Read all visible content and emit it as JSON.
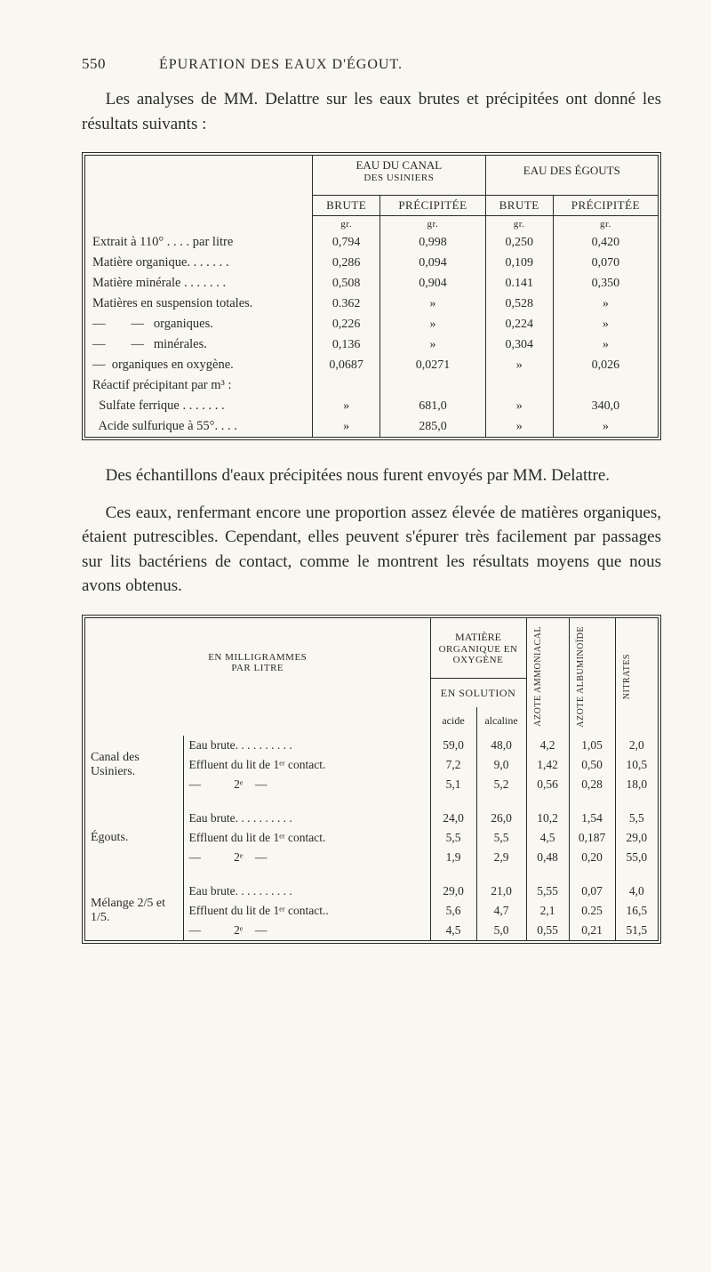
{
  "page": {
    "number": "550",
    "running_title": "ÉPURATION DES EAUX D'ÉGOUT."
  },
  "para1": "Les analyses de MM. Delattre sur les eaux brutes et précipitées ont donné les résultats suivants :",
  "para2": "Des échantillons d'eaux précipitées nous furent envoyés par MM. Delattre.",
  "para3": "Ces eaux, renfermant encore une proportion assez élevée de matières organiques, étaient putrescibles. Cependant, elles peuvent s'épurer très facilement par passages sur lits bactériens de contact, comme le montrent les résultats moyens que nous avons obtenus.",
  "table1": {
    "head": {
      "group1": "EAU DU CANAL",
      "group1_sub": "DES USINIERS",
      "group2": "EAU DES ÉGOUTS",
      "brute": "BRUTE",
      "precipitee": "PRÉCIPITÉE"
    },
    "unit_row": {
      "u": "gr."
    },
    "rows": [
      {
        "label": "Extrait à 110° . . . . par litre",
        "a": "0,794",
        "b": "0,998",
        "c": "0,250",
        "d": "0,420"
      },
      {
        "label": "Matière organique. . . . . . .",
        "a": "0,286",
        "b": "0,094",
        "c": "0,109",
        "d": "0,070"
      },
      {
        "label": "Matière minérale . . . . . . .",
        "a": "0,508",
        "b": "0,904",
        "c": "0.141",
        "d": "0,350"
      },
      {
        "label": "Matières en suspension totales.",
        "a": "0.362",
        "b": "»",
        "c": "0,528",
        "d": "»"
      },
      {
        "label": "—        —   organiques.",
        "a": "0,226",
        "b": "»",
        "c": "0,224",
        "d": "»"
      },
      {
        "label": "—        —   minérales.",
        "a": "0,136",
        "b": "»",
        "c": "0,304",
        "d": "»"
      },
      {
        "label": "—  organiques en oxygène.",
        "a": "0,0687",
        "b": "0,0271",
        "c": "»",
        "d": "0,026"
      },
      {
        "label": "Réactif précipitant par m³ :",
        "a": "",
        "b": "",
        "c": "",
        "d": ""
      },
      {
        "label": "  Sulfate ferrique . . . . . . .",
        "a": "»",
        "b": "681,0",
        "c": "»",
        "d": "340,0"
      },
      {
        "label": "  Acide sulfurique à 55°. . . .",
        "a": "»",
        "b": "285,0",
        "c": "»",
        "d": "»"
      }
    ]
  },
  "table2": {
    "head": {
      "label_title": "EN MILLIGRAMMES",
      "label_sub": "PAR LITRE",
      "matiere": "MATIÈRE",
      "matiere_sub1": "ORGANIQUE EN",
      "matiere_sub2": "OXYGÈNE",
      "en_solution": "EN SOLUTION",
      "acide": "acide",
      "alcaline": "alcaline",
      "col_ammon": "AZOTE AMMONIACAL",
      "col_album": "AZOTE ALBUMINOÏDE",
      "col_nitr": "NITRATES"
    },
    "groups": [
      {
        "name": "Canal des Usiniers.",
        "rows": [
          {
            "label": "Eau brute. . . . . . . . . .",
            "a": "59,0",
            "b": "48,0",
            "c": "4,2",
            "d": "1,05",
            "e": "2,0"
          },
          {
            "label": "Effluent du lit de 1ᵉʳ contact.",
            "a": "7,2",
            "b": "9,0",
            "c": "1,42",
            "d": "0,50",
            "e": "10,5"
          },
          {
            "label": "—           2ᵉ    —",
            "a": "5,1",
            "b": "5,2",
            "c": "0,56",
            "d": "0,28",
            "e": "18,0"
          }
        ]
      },
      {
        "name": "Égouts.",
        "rows": [
          {
            "label": "Eau brute. . . . . . . . . .",
            "a": "24,0",
            "b": "26,0",
            "c": "10,2",
            "d": "1,54",
            "e": "5,5"
          },
          {
            "label": "Effluent du lit de 1ᵉʳ contact.",
            "a": "5,5",
            "b": "5,5",
            "c": "4,5",
            "d": "0,187",
            "e": "29,0"
          },
          {
            "label": "—           2ᵉ    —",
            "a": "1,9",
            "b": "2,9",
            "c": "0,48",
            "d": "0,20",
            "e": "55,0"
          }
        ]
      },
      {
        "name": "Mélange 2/5 et 1/5.",
        "rows": [
          {
            "label": "Eau brute. . . . . . . . . .",
            "a": "29,0",
            "b": "21,0",
            "c": "5,55",
            "d": "0,07",
            "e": "4,0"
          },
          {
            "label": "Effluent du lit de 1ᵉʳ contact..",
            "a": "5,6",
            "b": "4,7",
            "c": "2,1",
            "d": "0.25",
            "e": "16,5"
          },
          {
            "label": "—           2ᵉ    —",
            "a": "4,5",
            "b": "5,0",
            "c": "0,55",
            "d": "0,21",
            "e": "51,5"
          }
        ]
      }
    ]
  }
}
